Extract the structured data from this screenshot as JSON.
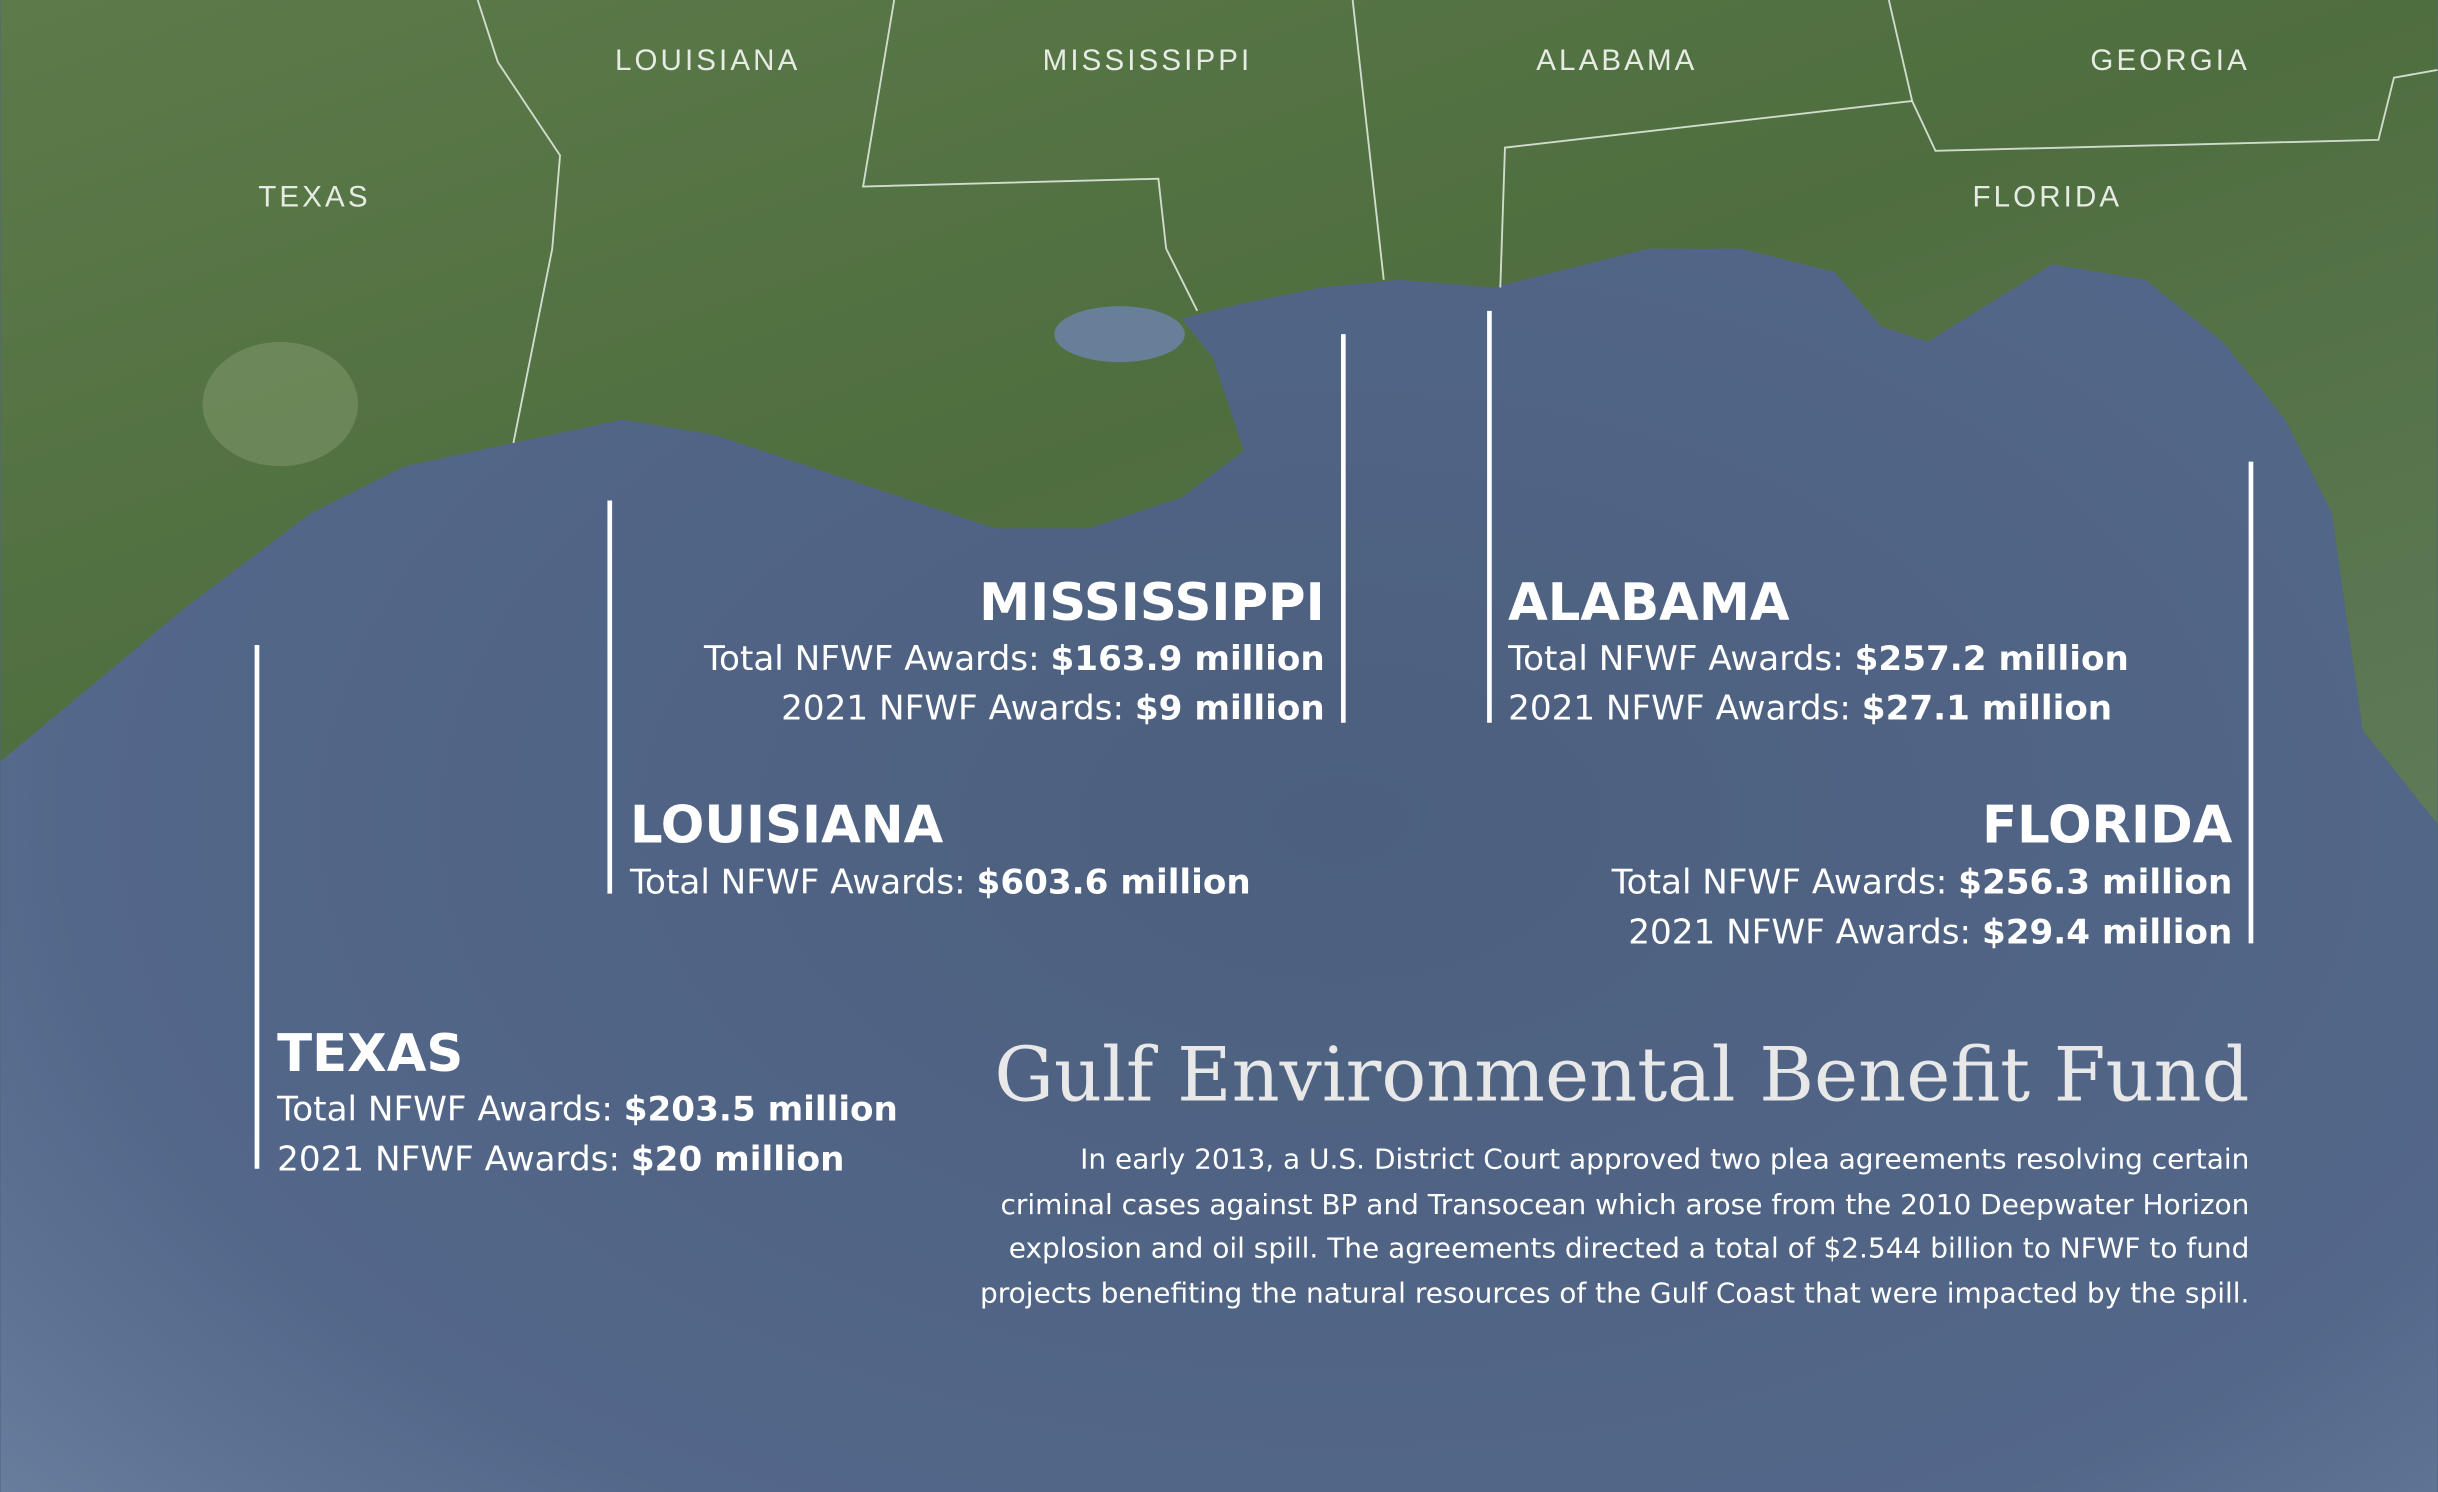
{
  "map_labels": [
    "TEXAS",
    "LOUISIANA",
    "MISSISSIPPI",
    "ALABAMA",
    "GEORGIA",
    "FLORIDA"
  ],
  "states": [
    {
      "name": "MISSISSIPPI",
      "total_label": "Total NFWF Awards:",
      "total": "$163.9 million",
      "recent_label": "2021 NFWF Awards:",
      "recent": "$9 million"
    },
    {
      "name": "LOUISIANA",
      "total_label": "Total NFWF Awards:",
      "total": "$603.6 million"
    },
    {
      "name": "TEXAS",
      "total_label": "Total NFWF Awards:",
      "total": "$203.5 million",
      "recent_label": "2021 NFWF Awards:",
      "recent": "$20 million"
    },
    {
      "name": "ALABAMA",
      "total_label": "Total NFWF Awards:",
      "total": "$257.2 million",
      "recent_label": "2021 NFWF Awards:",
      "recent": "$27.1 million"
    },
    {
      "name": "FLORIDA",
      "total_label": "Total NFWF Awards:",
      "total": "$256.3 million",
      "recent_label": "2021 NFWF Awards:",
      "recent": "$29.4 million"
    }
  ],
  "title": "Gulf Environmental Benefit Fund",
  "description": [
    "In early 2013, a U.S. District Court approved two plea agreements resolving certain",
    "criminal cases against BP and Transocean which arose from the 2010 Deepwater Horizon",
    "explosion and oil spill. The agreements directed a total of $2.544 billion to NFWF to fund",
    "projects benefiting the natural resources of the Gulf Coast that were impacted by the spill."
  ]
}
